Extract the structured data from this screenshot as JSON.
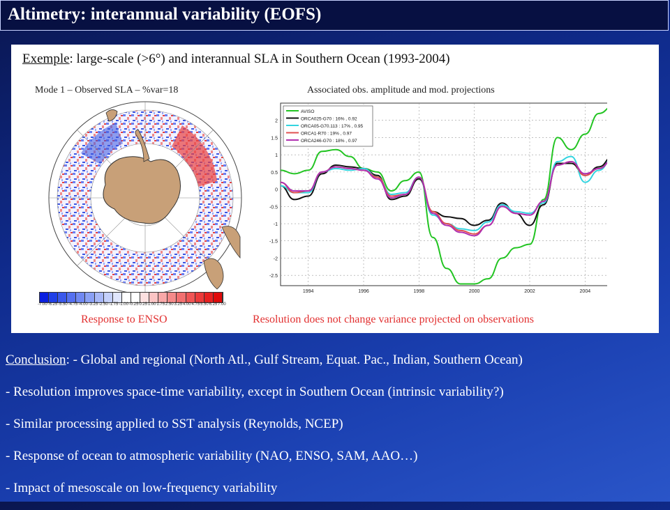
{
  "title": "Altimetry: interannual variability (EOFS)",
  "example": {
    "label": "Exemple",
    "text": ": large-scale (>6°) and interannual SLA in Southern Ocean (1993-2004)"
  },
  "map_caption": "Mode 1 – Observed SLA –  %var=18",
  "ts_caption": "Associated obs. amplitude and mod. projections",
  "map_response": "Response to ENSO",
  "ts_note": "Resolution does not change variance projected on observations",
  "colorbar_ticks": [
    "-7.00",
    "-6.25",
    "-5.50",
    "-4.75",
    "-4.00",
    "-3.25",
    "-2.50",
    "-1.75",
    "-1.00",
    "-0.25",
    "0.25",
    "1.00",
    "1.75",
    "2.50",
    "3.25",
    "4.00",
    "4.75",
    "5.50",
    "6.25",
    "7.00"
  ],
  "colors": {
    "background": "#1a3fb0",
    "title_bar": "#071042",
    "red_text": "#e23030"
  },
  "chart_data": {
    "type": "line",
    "x": [
      1993.0,
      1993.5,
      1994.0,
      1994.5,
      1995.0,
      1995.5,
      1996.0,
      1996.5,
      1997.0,
      1997.5,
      1998.0,
      1998.5,
      1999.0,
      1999.5,
      2000.0,
      2000.5,
      2001.0,
      2001.5,
      2002.0,
      2002.5,
      2003.0,
      2003.5,
      2004.0,
      2004.5,
      2005.0
    ],
    "xticks": [
      "1994",
      "1996",
      "1998",
      "2000",
      "2002",
      "2004"
    ],
    "xtick_values": [
      1994,
      1996,
      1998,
      2000,
      2002,
      2004
    ],
    "yticks": [
      "2",
      "1.5",
      "1",
      "0.5",
      "0",
      "-0.5",
      "-1",
      "-1.5",
      "-2",
      "-2.5"
    ],
    "ylim": [
      -2.8,
      2.5
    ],
    "xlim": [
      1993.0,
      2005.0
    ],
    "grid": true,
    "legend": "top-left",
    "series": [
      {
        "name": "AVISO",
        "color": "#22c422",
        "values": [
          0.55,
          0.45,
          0.55,
          1.1,
          1.15,
          0.95,
          0.6,
          0.5,
          -0.05,
          0.25,
          0.5,
          -1.4,
          -2.3,
          -2.75,
          -2.75,
          -2.6,
          -2.0,
          -1.7,
          -1.6,
          -0.3,
          1.5,
          1.15,
          1.6,
          2.2,
          2.4
        ]
      },
      {
        "name": "ORCA025-G70 : 16% , 0.92",
        "color": "#111111",
        "values": [
          0.1,
          -0.3,
          -0.2,
          0.45,
          0.7,
          0.65,
          0.6,
          0.4,
          -0.3,
          -0.2,
          0.3,
          -0.65,
          -0.8,
          -0.85,
          -1.05,
          -0.9,
          -0.4,
          -0.7,
          -1.05,
          -0.45,
          0.75,
          0.75,
          0.4,
          0.65,
          0.95
        ]
      },
      {
        "name": "ORCA05-G70.113 : 17% , 0.95",
        "color": "#33d4e0",
        "values": [
          0.1,
          -0.1,
          -0.1,
          0.5,
          0.6,
          0.55,
          0.6,
          0.35,
          -0.15,
          -0.1,
          0.35,
          -0.75,
          -1.0,
          -1.15,
          -1.2,
          -0.95,
          -0.45,
          -0.65,
          -0.7,
          -0.4,
          0.8,
          0.95,
          0.2,
          0.55,
          0.9
        ]
      },
      {
        "name": "ORCA1-R70 : 19% , 0.97",
        "color": "#e05050",
        "values": [
          0.2,
          -0.1,
          -0.05,
          0.5,
          0.65,
          0.6,
          0.55,
          0.35,
          -0.2,
          -0.15,
          0.35,
          -0.65,
          -1.0,
          -1.2,
          -1.3,
          -1.05,
          -0.5,
          -0.7,
          -0.75,
          -0.35,
          0.7,
          0.8,
          0.4,
          0.6,
          0.85
        ]
      },
      {
        "name": "ORCA246-G70 : 18% , 0.97",
        "color": "#b030b0",
        "values": [
          0.2,
          -0.05,
          -0.05,
          0.5,
          0.65,
          0.6,
          0.55,
          0.3,
          -0.25,
          -0.15,
          0.35,
          -0.7,
          -1.05,
          -1.25,
          -1.35,
          -1.05,
          -0.5,
          -0.7,
          -0.75,
          -0.35,
          0.7,
          0.8,
          0.45,
          0.6,
          0.85
        ]
      }
    ]
  },
  "conclusion": {
    "label": "Conclusion",
    "lines": [
      ": - Global and regional (North Atl., Gulf Stream, Equat. Pac., Indian, Southern Ocean)",
      "- Resolution improves space-time variability, except in Southern Ocean (intrinsic variability?)",
      "- Similar processing applied to SST analysis (Reynolds, NCEP)",
      "- Response of ocean to atmospheric variability (NAO, ENSO, SAM, AAO…)",
      "- Impact of mesoscale on low-frequency variability"
    ]
  }
}
